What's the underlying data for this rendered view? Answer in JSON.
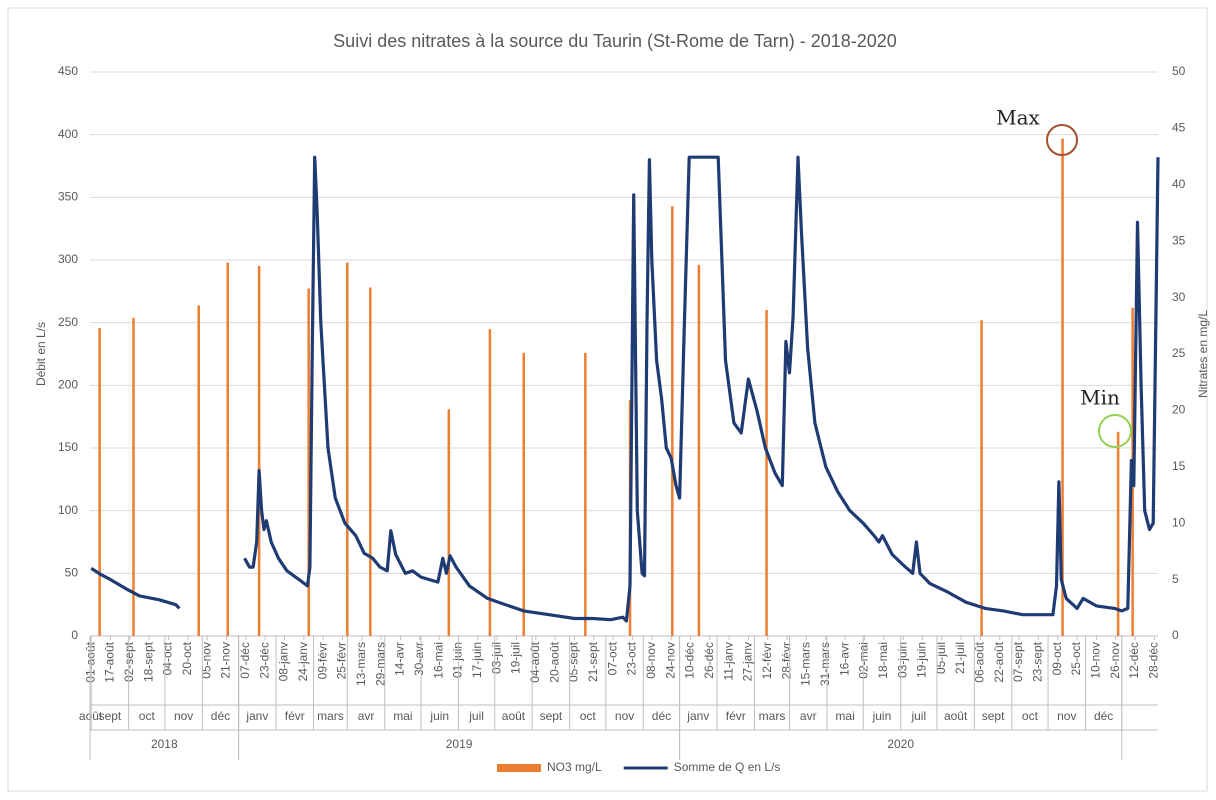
{
  "chart_data": {
    "type": "combo",
    "title": "Suivi des nitrates à la source du Taurin (St-Rome de Tarn) - 2018-2020",
    "ylabel": "Débit en L/s",
    "y2label": "Nitrates en mg/L",
    "grid": true,
    "legend": "bottom",
    "annotations": [
      "Max",
      "Min"
    ],
    "xlim": [
      "2018-07-31",
      "2020-12-31"
    ],
    "ylim": [
      0,
      450
    ],
    "yticks": [
      0,
      50,
      100,
      150,
      200,
      250,
      300,
      350,
      400,
      450
    ],
    "y2lim": [
      0,
      50
    ],
    "y2ticks": [
      0,
      5,
      10,
      15,
      20,
      25,
      30,
      35,
      40,
      45,
      50
    ],
    "xticks": [
      {
        "value": "2018-08-01",
        "label": "01-août"
      },
      {
        "value": "2018-08-17",
        "label": "17-août"
      },
      {
        "value": "2018-09-02",
        "label": "02-sept"
      },
      {
        "value": "2018-09-18",
        "label": "18-sept"
      },
      {
        "value": "2018-10-04",
        "label": "04-oct"
      },
      {
        "value": "2018-10-20",
        "label": "20-oct"
      },
      {
        "value": "2018-11-05",
        "label": "05-nov"
      },
      {
        "value": "2018-11-21",
        "label": "21-nov"
      },
      {
        "value": "2018-12-07",
        "label": "07-déc"
      },
      {
        "value": "2018-12-23",
        "label": "23-déc"
      },
      {
        "value": "2019-01-08",
        "label": "08-janv"
      },
      {
        "value": "2019-01-24",
        "label": "24-janv"
      },
      {
        "value": "2019-02-09",
        "label": "09-févr"
      },
      {
        "value": "2019-02-25",
        "label": "25-févr"
      },
      {
        "value": "2019-03-13",
        "label": "13-mars"
      },
      {
        "value": "2019-03-29",
        "label": "29-mars"
      },
      {
        "value": "2019-04-14",
        "label": "14-avr"
      },
      {
        "value": "2019-04-30",
        "label": "30-avr"
      },
      {
        "value": "2019-05-16",
        "label": "16-mai"
      },
      {
        "value": "2019-06-01",
        "label": "01-juin"
      },
      {
        "value": "2019-06-17",
        "label": "17-juin"
      },
      {
        "value": "2019-07-03",
        "label": "03-juil"
      },
      {
        "value": "2019-07-19",
        "label": "19-juil"
      },
      {
        "value": "2019-08-04",
        "label": "04-août"
      },
      {
        "value": "2019-08-20",
        "label": "20-août"
      },
      {
        "value": "2019-09-05",
        "label": "05-sept"
      },
      {
        "value": "2019-09-21",
        "label": "21-sept"
      },
      {
        "value": "2019-10-07",
        "label": "07-oct"
      },
      {
        "value": "2019-10-23",
        "label": "23-oct"
      },
      {
        "value": "2019-11-08",
        "label": "08-nov"
      },
      {
        "value": "2019-11-24",
        "label": "24-nov"
      },
      {
        "value": "2019-12-10",
        "label": "10-déc"
      },
      {
        "value": "2019-12-26",
        "label": "26-déc"
      },
      {
        "value": "2020-01-11",
        "label": "11-janv"
      },
      {
        "value": "2020-01-27",
        "label": "27-janv"
      },
      {
        "value": "2020-02-12",
        "label": "12-févr"
      },
      {
        "value": "2020-02-28",
        "label": "28-févr"
      },
      {
        "value": "2020-03-15",
        "label": "15-mars"
      },
      {
        "value": "2020-03-31",
        "label": "31-mars"
      },
      {
        "value": "2020-04-16",
        "label": "16-avr"
      },
      {
        "value": "2020-05-02",
        "label": "02-mai"
      },
      {
        "value": "2020-05-18",
        "label": "18-mai"
      },
      {
        "value": "2020-06-03",
        "label": "03-juin"
      },
      {
        "value": "2020-06-19",
        "label": "19-juin"
      },
      {
        "value": "2020-07-05",
        "label": "05-juil"
      },
      {
        "value": "2020-07-21",
        "label": "21-juil"
      },
      {
        "value": "2020-08-06",
        "label": "06-août"
      },
      {
        "value": "2020-08-22",
        "label": "22-août"
      },
      {
        "value": "2020-09-07",
        "label": "07-sept"
      },
      {
        "value": "2020-09-23",
        "label": "23-sept"
      },
      {
        "value": "2020-10-09",
        "label": "09-oct"
      },
      {
        "value": "2020-10-25",
        "label": "25-oct"
      },
      {
        "value": "2020-11-10",
        "label": "10-nov"
      },
      {
        "value": "2020-11-26",
        "label": "26-nov"
      },
      {
        "value": "2020-12-12",
        "label": "12-déc"
      },
      {
        "value": "2020-12-28",
        "label": "28-déc"
      }
    ],
    "years": [
      {
        "label": "2018",
        "months": [
          "août",
          "sept",
          "oct",
          "nov",
          "déc"
        ]
      },
      {
        "label": "2019",
        "months": [
          "janv",
          "févr",
          "mars",
          "avr",
          "mai",
          "juin",
          "juil",
          "août",
          "sept",
          "oct",
          "nov",
          "déc"
        ]
      },
      {
        "label": "2020",
        "months": [
          "janv",
          "févr",
          "mars",
          "avr",
          "mai",
          "juin",
          "juil",
          "août",
          "sept",
          "oct",
          "nov",
          "déc"
        ]
      }
    ],
    "series": [
      {
        "name": "NO3 mg/L",
        "type": "bar",
        "axis": "y2",
        "color": "#ED7D31",
        "x": [
          "2018-08-08",
          "2018-09-05",
          "2018-10-29",
          "2018-11-22",
          "2018-12-18",
          "2019-01-28",
          "2019-03-01",
          "2019-03-20",
          "2019-05-24",
          "2019-06-27",
          "2019-07-25",
          "2019-09-14",
          "2019-10-21",
          "2019-11-25",
          "2019-12-17",
          "2020-02-11",
          "2020-08-07",
          "2020-10-13",
          "2020-11-28",
          "2020-12-10"
        ],
        "values": [
          27.3,
          28.2,
          29.3,
          33.1,
          32.8,
          30.8,
          33.1,
          30.9,
          20.1,
          27.2,
          25.1,
          25.1,
          20.9,
          38.1,
          32.9,
          28.9,
          28.0,
          44.1,
          18.1,
          29.1
        ]
      },
      {
        "name": "Somme de Q en L/s",
        "type": "line",
        "color": "#1F3B73",
        "x": [
          "2018-08-01",
          "2018-08-09",
          "2018-08-17",
          "2018-08-31",
          "2018-09-10",
          "2018-09-26",
          "2018-10-10",
          "2018-10-13",
          "2018-11-15",
          "2018-12-06",
          "2018-12-10",
          "2018-12-13",
          "2018-12-16",
          "2018-12-18",
          "2018-12-20",
          "2018-12-22",
          "2018-12-24",
          "2018-12-28",
          "2019-01-03",
          "2019-01-10",
          "2019-01-20",
          "2019-01-27",
          "2019-01-29",
          "2019-01-31",
          "2019-02-02",
          "2019-02-04",
          "2019-02-07",
          "2019-02-13",
          "2019-02-19",
          "2019-02-27",
          "2019-03-08",
          "2019-03-15",
          "2019-03-22",
          "2019-03-28",
          "2019-04-03",
          "2019-04-06",
          "2019-04-10",
          "2019-04-18",
          "2019-04-24",
          "2019-05-01",
          "2019-05-15",
          "2019-05-19",
          "2019-05-22",
          "2019-05-25",
          "2019-05-30",
          "2019-06-10",
          "2019-06-25",
          "2019-07-10",
          "2019-07-25",
          "2019-08-15",
          "2019-09-05",
          "2019-09-20",
          "2019-10-05",
          "2019-10-15",
          "2019-10-18",
          "2019-10-21",
          "2019-10-24",
          "2019-10-27",
          "2019-10-31",
          "2019-11-02",
          "2019-11-04",
          "2019-11-06",
          "2019-11-08",
          "2019-11-12",
          "2019-11-16",
          "2019-11-20",
          "2019-11-24",
          "2019-11-28",
          "2019-12-01",
          "2019-12-05",
          "2019-12-09",
          "2020-01-02",
          "2020-01-05",
          "2020-01-08",
          "2020-01-15",
          "2020-01-21",
          "2020-01-27",
          "2020-02-03",
          "2020-02-10",
          "2020-02-18",
          "2020-02-24",
          "2020-02-27",
          "2020-03-01",
          "2020-03-04",
          "2020-03-08",
          "2020-03-11",
          "2020-03-16",
          "2020-03-22",
          "2020-03-31",
          "2020-04-10",
          "2020-04-20",
          "2020-05-01",
          "2020-05-10",
          "2020-05-14",
          "2020-05-17",
          "2020-05-25",
          "2020-06-05",
          "2020-06-11",
          "2020-06-14",
          "2020-06-17",
          "2020-06-25",
          "2020-07-10",
          "2020-07-25",
          "2020-08-10",
          "2020-08-25",
          "2020-09-10",
          "2020-09-25",
          "2020-10-05",
          "2020-10-08",
          "2020-10-10",
          "2020-10-12",
          "2020-10-16",
          "2020-10-25",
          "2020-10-30",
          "2020-11-10",
          "2020-11-25",
          "2020-12-01",
          "2020-12-06",
          "2020-12-09",
          "2020-12-11",
          "2020-12-14",
          "2020-12-17",
          "2020-12-20",
          "2020-12-24",
          "2020-12-27",
          "2020-12-31"
        ],
        "values": [
          54,
          49,
          45,
          37,
          32,
          29,
          25,
          22,
          null,
          62,
          55,
          55,
          75,
          132,
          100,
          85,
          92,
          75,
          62,
          52,
          45,
          40,
          55,
          230,
          382,
          340,
          250,
          150,
          110,
          90,
          80,
          66,
          62,
          55,
          52,
          84,
          65,
          50,
          52,
          47,
          43,
          62,
          50,
          64,
          55,
          40,
          30,
          25,
          20,
          17,
          14,
          14,
          13,
          15,
          12,
          40,
          352,
          100,
          50,
          48,
          250,
          380,
          300,
          220,
          190,
          150,
          142,
          120,
          110,
          250,
          382,
          382,
          300,
          220,
          170,
          162,
          205,
          180,
          150,
          130,
          120,
          235,
          210,
          255,
          382,
          320,
          230,
          170,
          135,
          115,
          100,
          90,
          80,
          75,
          80,
          65,
          55,
          50,
          75,
          50,
          42,
          35,
          27,
          22,
          20,
          17,
          17,
          17,
          40,
          123,
          45,
          30,
          22,
          30,
          24,
          22,
          20,
          22,
          140,
          120,
          330,
          200,
          100,
          85,
          90,
          382
        ]
      }
    ]
  }
}
